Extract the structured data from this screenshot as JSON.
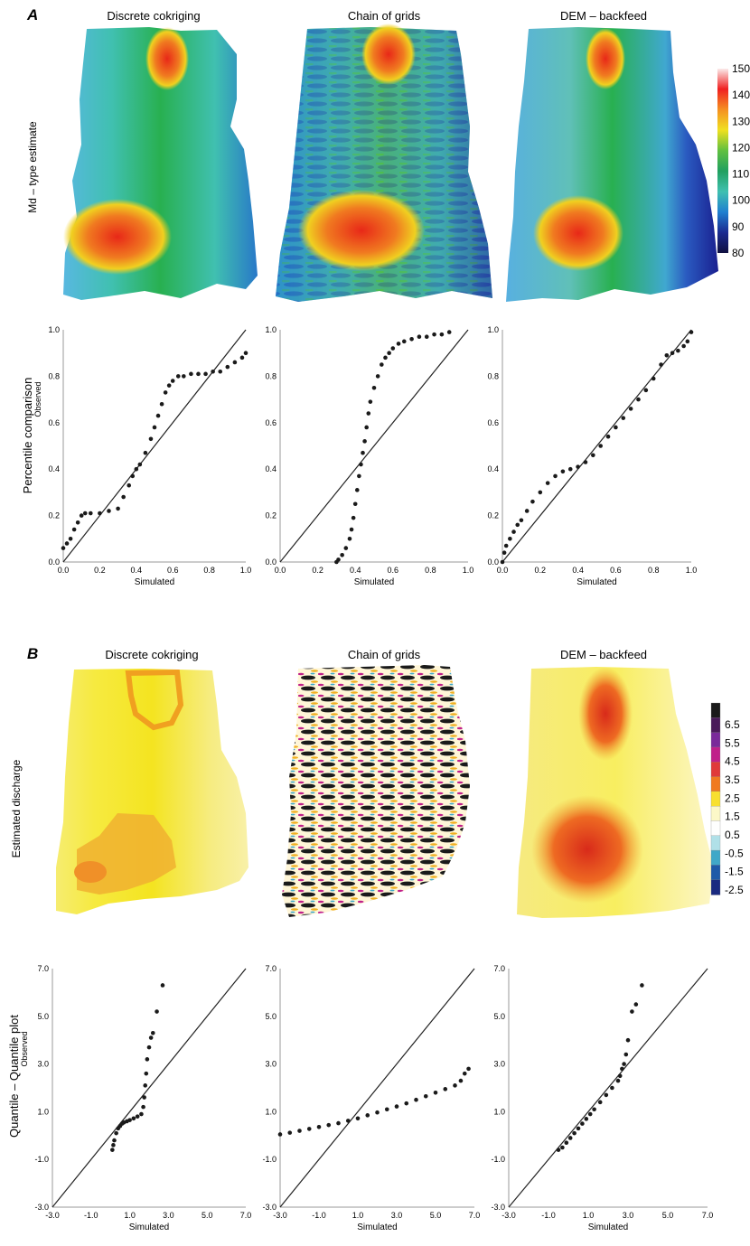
{
  "panel_a": {
    "letter": "A",
    "row_label": "Md – type estimate",
    "qq_row_label": "Percentile comparison",
    "maps": [
      "Discrete cokriging",
      "Chain of grids",
      "DEM – backfeed"
    ],
    "colorbar": {
      "ticks": [
        "150",
        "140",
        "130",
        "120",
        "110",
        "100",
        "90",
        "80"
      ],
      "stops": [
        "#fbeaea",
        "#f02020",
        "#f59020",
        "#f0e020",
        "#60c040",
        "#20a060",
        "#40c0b0",
        "#2080d0",
        "#1a2a90",
        "#101040"
      ]
    },
    "axis_ticks": [
      "0.0",
      "0.2",
      "0.4",
      "0.6",
      "0.8",
      "1.0"
    ],
    "xlabel": "Simulated",
    "ylabel": "Observed"
  },
  "panel_b": {
    "letter": "B",
    "row_label": "Estimated discharge",
    "qq_row_label": "Quantile – Quantile plot",
    "maps": [
      "Discrete cokriging",
      "Chain of grids",
      "DEM – backfeed"
    ],
    "colorbar": {
      "ticks": [
        "6.5",
        "5.5",
        "4.5",
        "3.5",
        "2.5",
        "1.5",
        "0.5",
        "-0.5",
        "-1.5",
        "-2.5"
      ],
      "colors": [
        "#1a1a1a",
        "#4a1a5a",
        "#7a2a9a",
        "#c0208a",
        "#e03a3a",
        "#f07a20",
        "#f8e030",
        "#fcf8c8",
        "#fefefe",
        "#b0e0e8",
        "#40a8c8",
        "#1e5aa8",
        "#1a2a80"
      ]
    },
    "axis_ticks": [
      "-3.0",
      "-1.0",
      "1.0",
      "3.0",
      "5.0",
      "7.0"
    ],
    "xlabel": "Simulated",
    "ylabel": "Observed"
  },
  "chart_data": [
    {
      "type": "scatter",
      "title": "Discrete cokriging",
      "xlabel": "Simulated",
      "ylabel": "Observed",
      "xlim": [
        0,
        1
      ],
      "ylim": [
        0,
        1
      ],
      "reference_line": "1:1",
      "x": [
        0.0,
        0.02,
        0.04,
        0.06,
        0.08,
        0.1,
        0.12,
        0.15,
        0.2,
        0.25,
        0.3,
        0.33,
        0.36,
        0.38,
        0.4,
        0.42,
        0.45,
        0.48,
        0.5,
        0.52,
        0.54,
        0.56,
        0.58,
        0.6,
        0.63,
        0.66,
        0.7,
        0.74,
        0.78,
        0.82,
        0.86,
        0.9,
        0.94,
        0.98,
        1.0
      ],
      "y": [
        0.06,
        0.08,
        0.1,
        0.14,
        0.17,
        0.2,
        0.21,
        0.21,
        0.21,
        0.22,
        0.23,
        0.28,
        0.33,
        0.37,
        0.4,
        0.42,
        0.47,
        0.53,
        0.58,
        0.63,
        0.68,
        0.73,
        0.76,
        0.78,
        0.8,
        0.8,
        0.81,
        0.81,
        0.81,
        0.82,
        0.82,
        0.84,
        0.86,
        0.88,
        0.9
      ]
    },
    {
      "type": "scatter",
      "title": "Chain of grids",
      "xlabel": "Simulated",
      "ylabel": "Observed",
      "xlim": [
        0,
        1
      ],
      "ylim": [
        0,
        1
      ],
      "reference_line": "1:1",
      "x": [
        0.3,
        0.31,
        0.33,
        0.35,
        0.37,
        0.38,
        0.39,
        0.4,
        0.41,
        0.42,
        0.43,
        0.44,
        0.45,
        0.46,
        0.47,
        0.48,
        0.5,
        0.52,
        0.54,
        0.56,
        0.58,
        0.6,
        0.63,
        0.66,
        0.7,
        0.74,
        0.78,
        0.82,
        0.86,
        0.9
      ],
      "y": [
        0.0,
        0.01,
        0.03,
        0.06,
        0.1,
        0.14,
        0.19,
        0.25,
        0.31,
        0.37,
        0.42,
        0.47,
        0.52,
        0.58,
        0.64,
        0.69,
        0.75,
        0.8,
        0.85,
        0.88,
        0.9,
        0.92,
        0.94,
        0.95,
        0.96,
        0.97,
        0.97,
        0.98,
        0.98,
        0.99
      ]
    },
    {
      "type": "scatter",
      "title": "DEM – backfeed",
      "xlabel": "Simulated",
      "ylabel": "Observed",
      "xlim": [
        0,
        1
      ],
      "ylim": [
        0,
        1
      ],
      "reference_line": "1:1",
      "x": [
        0.0,
        0.01,
        0.02,
        0.04,
        0.06,
        0.08,
        0.1,
        0.13,
        0.16,
        0.2,
        0.24,
        0.28,
        0.32,
        0.36,
        0.4,
        0.44,
        0.48,
        0.52,
        0.56,
        0.6,
        0.64,
        0.68,
        0.72,
        0.76,
        0.8,
        0.84,
        0.87,
        0.9,
        0.93,
        0.96,
        0.98,
        1.0
      ],
      "y": [
        0.0,
        0.04,
        0.07,
        0.1,
        0.13,
        0.16,
        0.18,
        0.22,
        0.26,
        0.3,
        0.34,
        0.37,
        0.39,
        0.4,
        0.41,
        0.43,
        0.46,
        0.5,
        0.54,
        0.58,
        0.62,
        0.66,
        0.7,
        0.74,
        0.79,
        0.85,
        0.89,
        0.9,
        0.91,
        0.93,
        0.95,
        0.99
      ]
    },
    {
      "type": "scatter",
      "title": "Discrete cokriging",
      "xlabel": "Simulated",
      "ylabel": "Observed",
      "xlim": [
        -3,
        7
      ],
      "ylim": [
        -3,
        7
      ],
      "reference_line": "1:1",
      "x": [
        0.1,
        0.15,
        0.2,
        0.3,
        0.4,
        0.5,
        0.6,
        0.7,
        0.85,
        1.0,
        1.2,
        1.4,
        1.6,
        1.7,
        1.75,
        1.8,
        1.85,
        1.9,
        2.0,
        2.1,
        2.2,
        2.4,
        2.7
      ],
      "y": [
        -0.6,
        -0.4,
        -0.2,
        0.1,
        0.3,
        0.4,
        0.5,
        0.55,
        0.6,
        0.65,
        0.72,
        0.8,
        0.9,
        1.2,
        1.6,
        2.1,
        2.6,
        3.2,
        3.7,
        4.1,
        4.3,
        5.2,
        6.3
      ]
    },
    {
      "type": "scatter",
      "title": "Chain of grids",
      "xlabel": "Simulated",
      "ylabel": "Observed",
      "xlim": [
        -3,
        7
      ],
      "ylim": [
        -3,
        7
      ],
      "reference_line": "1:1",
      "x": [
        -3.0,
        -2.5,
        -2.0,
        -1.5,
        -1.0,
        -0.5,
        0.0,
        0.5,
        1.0,
        1.5,
        2.0,
        2.5,
        3.0,
        3.5,
        4.0,
        4.5,
        5.0,
        5.5,
        6.0,
        6.3,
        6.5,
        6.7
      ],
      "y": [
        0.05,
        0.12,
        0.2,
        0.28,
        0.36,
        0.44,
        0.52,
        0.62,
        0.72,
        0.85,
        0.97,
        1.1,
        1.22,
        1.35,
        1.5,
        1.65,
        1.8,
        1.95,
        2.1,
        2.3,
        2.6,
        2.8
      ]
    },
    {
      "type": "scatter",
      "title": "DEM – backfeed",
      "xlabel": "Simulated",
      "ylabel": "Observed",
      "xlim": [
        -3,
        7
      ],
      "ylim": [
        -3,
        7
      ],
      "reference_line": "1:1",
      "x": [
        -0.5,
        -0.3,
        -0.1,
        0.1,
        0.3,
        0.5,
        0.7,
        0.9,
        1.1,
        1.3,
        1.6,
        1.9,
        2.2,
        2.5,
        2.6,
        2.7,
        2.8,
        2.9,
        3.0,
        3.2,
        3.4,
        3.7
      ],
      "y": [
        -0.6,
        -0.5,
        -0.3,
        -0.1,
        0.1,
        0.3,
        0.5,
        0.7,
        0.9,
        1.1,
        1.4,
        1.7,
        2.0,
        2.3,
        2.5,
        2.8,
        3.0,
        3.4,
        4.0,
        5.2,
        5.5,
        6.3
      ]
    }
  ]
}
